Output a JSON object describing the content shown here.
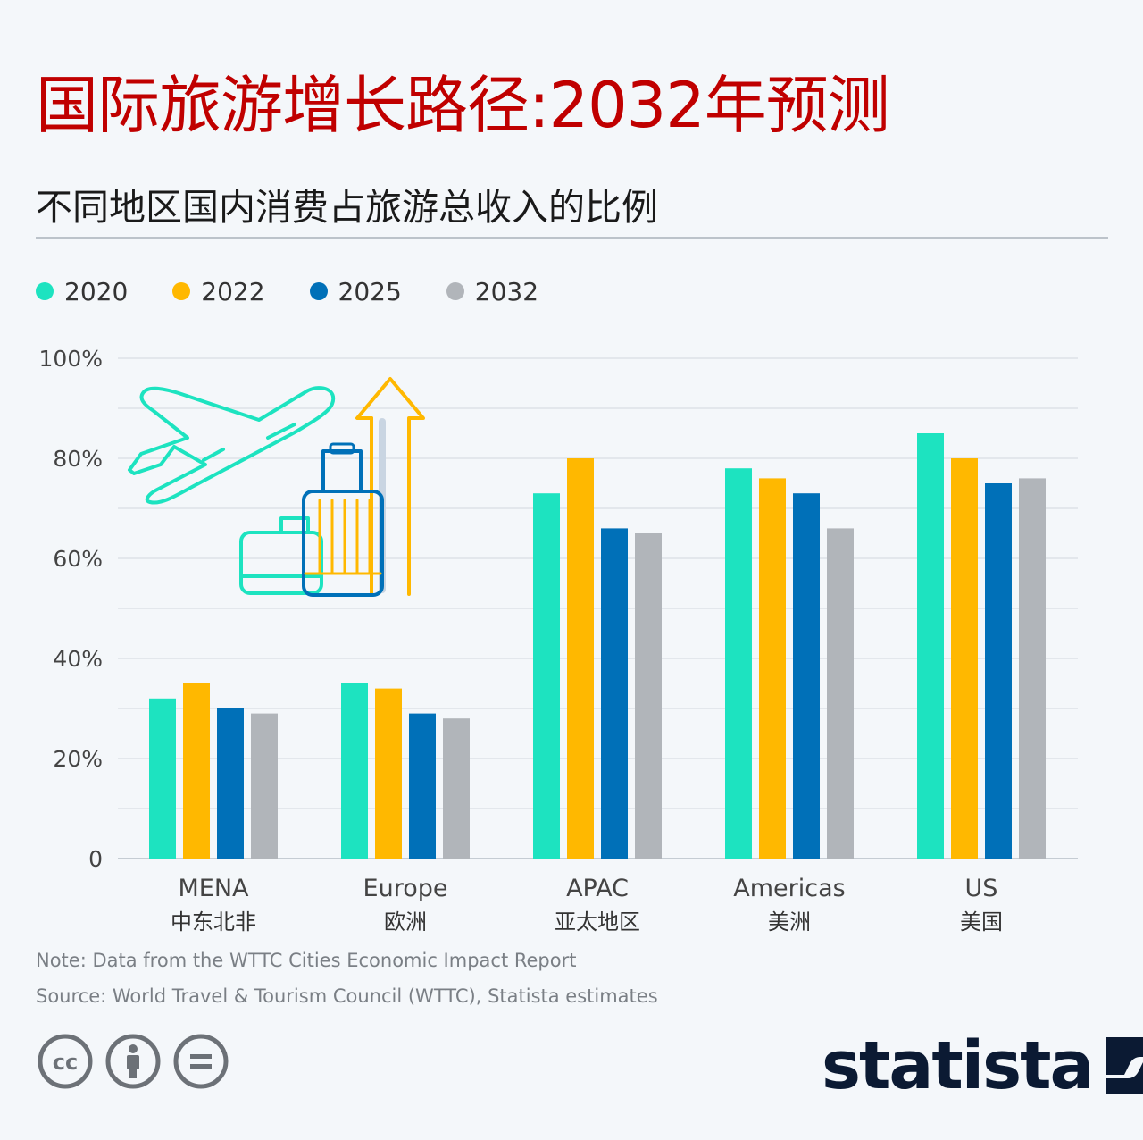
{
  "header": {
    "title": "国际旅游增长路径:2032年预测",
    "subtitle": "不同地区国内消费占旅游总收入的比例"
  },
  "chart_data": {
    "type": "bar",
    "categories": [
      "MENA",
      "Europe",
      "APAC",
      "Americas",
      "US"
    ],
    "categories_cn": [
      "中东北非",
      "欧洲",
      "亚太地区",
      "美洲",
      "美国"
    ],
    "series": [
      {
        "name": "2020",
        "color": "#1de3c0",
        "values": [
          32,
          35,
          73,
          78,
          85
        ]
      },
      {
        "name": "2022",
        "color": "#ffb800",
        "values": [
          35,
          34,
          80,
          76,
          80
        ]
      },
      {
        "name": "2025",
        "color": "#0070b8",
        "values": [
          30,
          29,
          66,
          73,
          75
        ]
      },
      {
        "name": "2032",
        "color": "#b1b5ba",
        "values": [
          29,
          28,
          65,
          66,
          76
        ]
      }
    ],
    "ylim": [
      0,
      100
    ],
    "yticks": [
      0,
      20,
      40,
      60,
      80,
      100
    ],
    "ytick_labels": [
      "0",
      "20%",
      "40%",
      "60%",
      "80%",
      "100%"
    ],
    "grid": true,
    "legend_position": "top-left"
  },
  "footer": {
    "note": "Note: Data from the WTTC Cities Economic Impact Report",
    "source": "Source: World Travel & Tourism Council (WTTC), Statista estimates",
    "brand": "statista",
    "license_icons": [
      "cc-icon",
      "attribution-icon",
      "no-derivatives-icon"
    ]
  }
}
